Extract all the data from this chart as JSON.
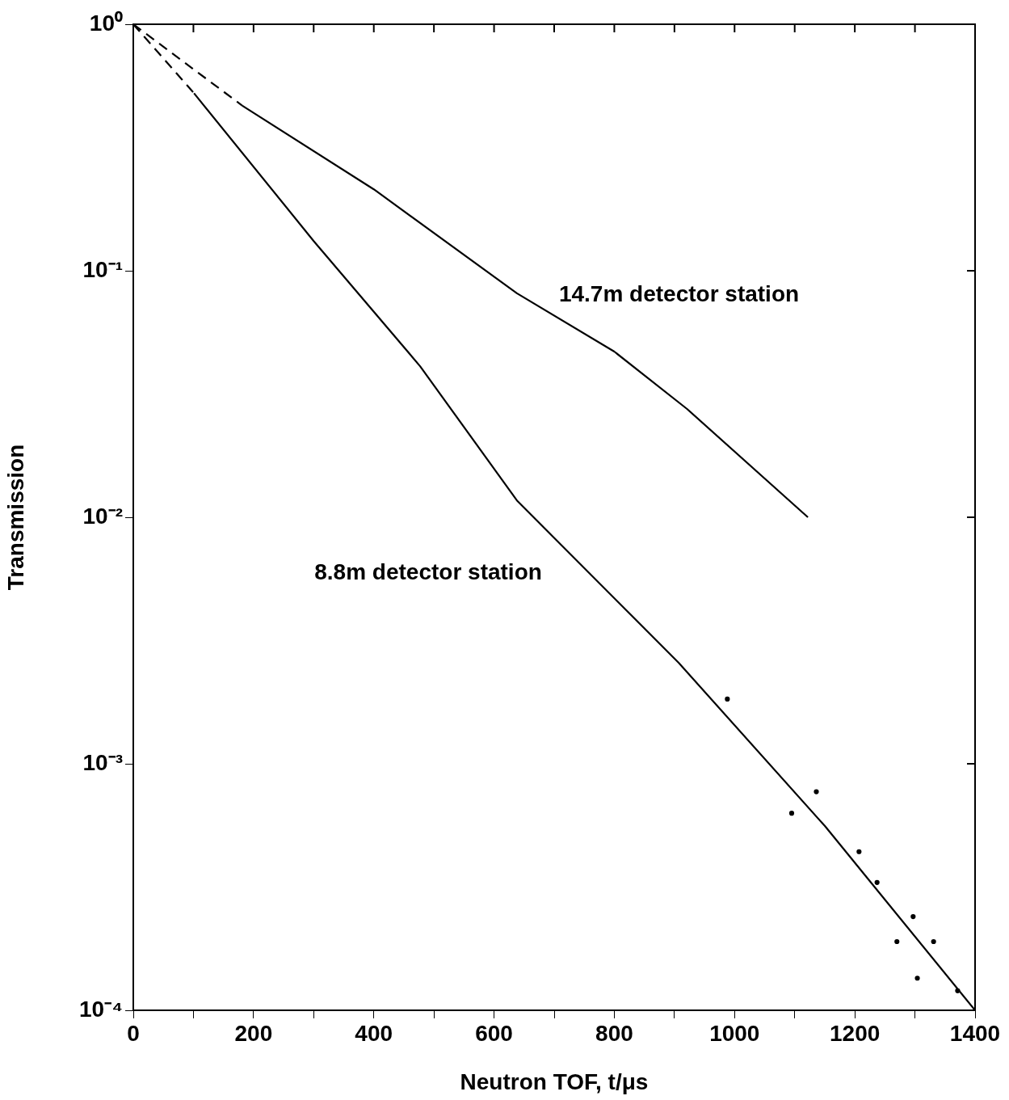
{
  "chart_data": {
    "type": "line",
    "xlabel": "Neutron TOF, t/μs",
    "ylabel": "Transmission",
    "log": "y",
    "grid": false,
    "legend": false,
    "marker": "none",
    "xlim": [
      0,
      1400
    ],
    "ylim": [
      0.0001,
      1
    ],
    "xticks": [
      0,
      {
        "value": 100,
        "label": null
      },
      200,
      {
        "value": 300,
        "label": null
      },
      400,
      {
        "value": 500,
        "label": null
      },
      600,
      {
        "value": 700,
        "label": null
      },
      800,
      {
        "value": 900,
        "label": null
      },
      1000,
      {
        "value": 1100,
        "label": null
      },
      1200,
      {
        "value": 1300,
        "label": null
      },
      1400
    ],
    "yticks": [
      {
        "value": 0.0001,
        "label": "10⁻⁴"
      },
      {
        "value": 0.001,
        "label": "10⁻³"
      },
      {
        "value": 0.01,
        "label": "10⁻²"
      },
      {
        "value": 0.1,
        "label": "10⁻¹"
      },
      {
        "value": 1,
        "label": "10⁰"
      }
    ],
    "series": [
      {
        "color": "#000000",
        "line_style": "dashed",
        "x": [
          0,
          181
        ],
        "values": [
          1,
          0.468
        ]
      },
      {
        "name": "14.7m detector station",
        "color": "#000000",
        "line_style": "solid",
        "x": [
          181,
          400,
          638,
          800,
          921,
          1122
        ],
        "values": [
          0.468,
          0.214,
          0.081,
          0.047,
          0.0275,
          0.01
        ]
      },
      {
        "color": "#000000",
        "line_style": "dashed",
        "x": [
          0,
          101
        ],
        "values": [
          1,
          0.525
        ]
      },
      {
        "name": "8.8m detector station",
        "color": "#000000",
        "line_style": "solid",
        "x": [
          101,
          300,
          477,
          638,
          907,
          1150,
          1400
        ],
        "values": [
          0.525,
          0.132,
          0.041,
          0.0117,
          0.00257,
          0.00056,
          0.0001
        ]
      },
      {
        "type": "scatter",
        "color": "#000000",
        "marker": "circle",
        "x": [
          988,
          1095,
          1136,
          1207,
          1237,
          1270,
          1297,
          1331,
          1304,
          1371
        ],
        "values": [
          0.00183,
          0.00063,
          0.00077,
          0.00044,
          0.00033,
          0.00019,
          0.00024,
          0.00019,
          0.000135,
          0.00012
        ]
      }
    ]
  }
}
